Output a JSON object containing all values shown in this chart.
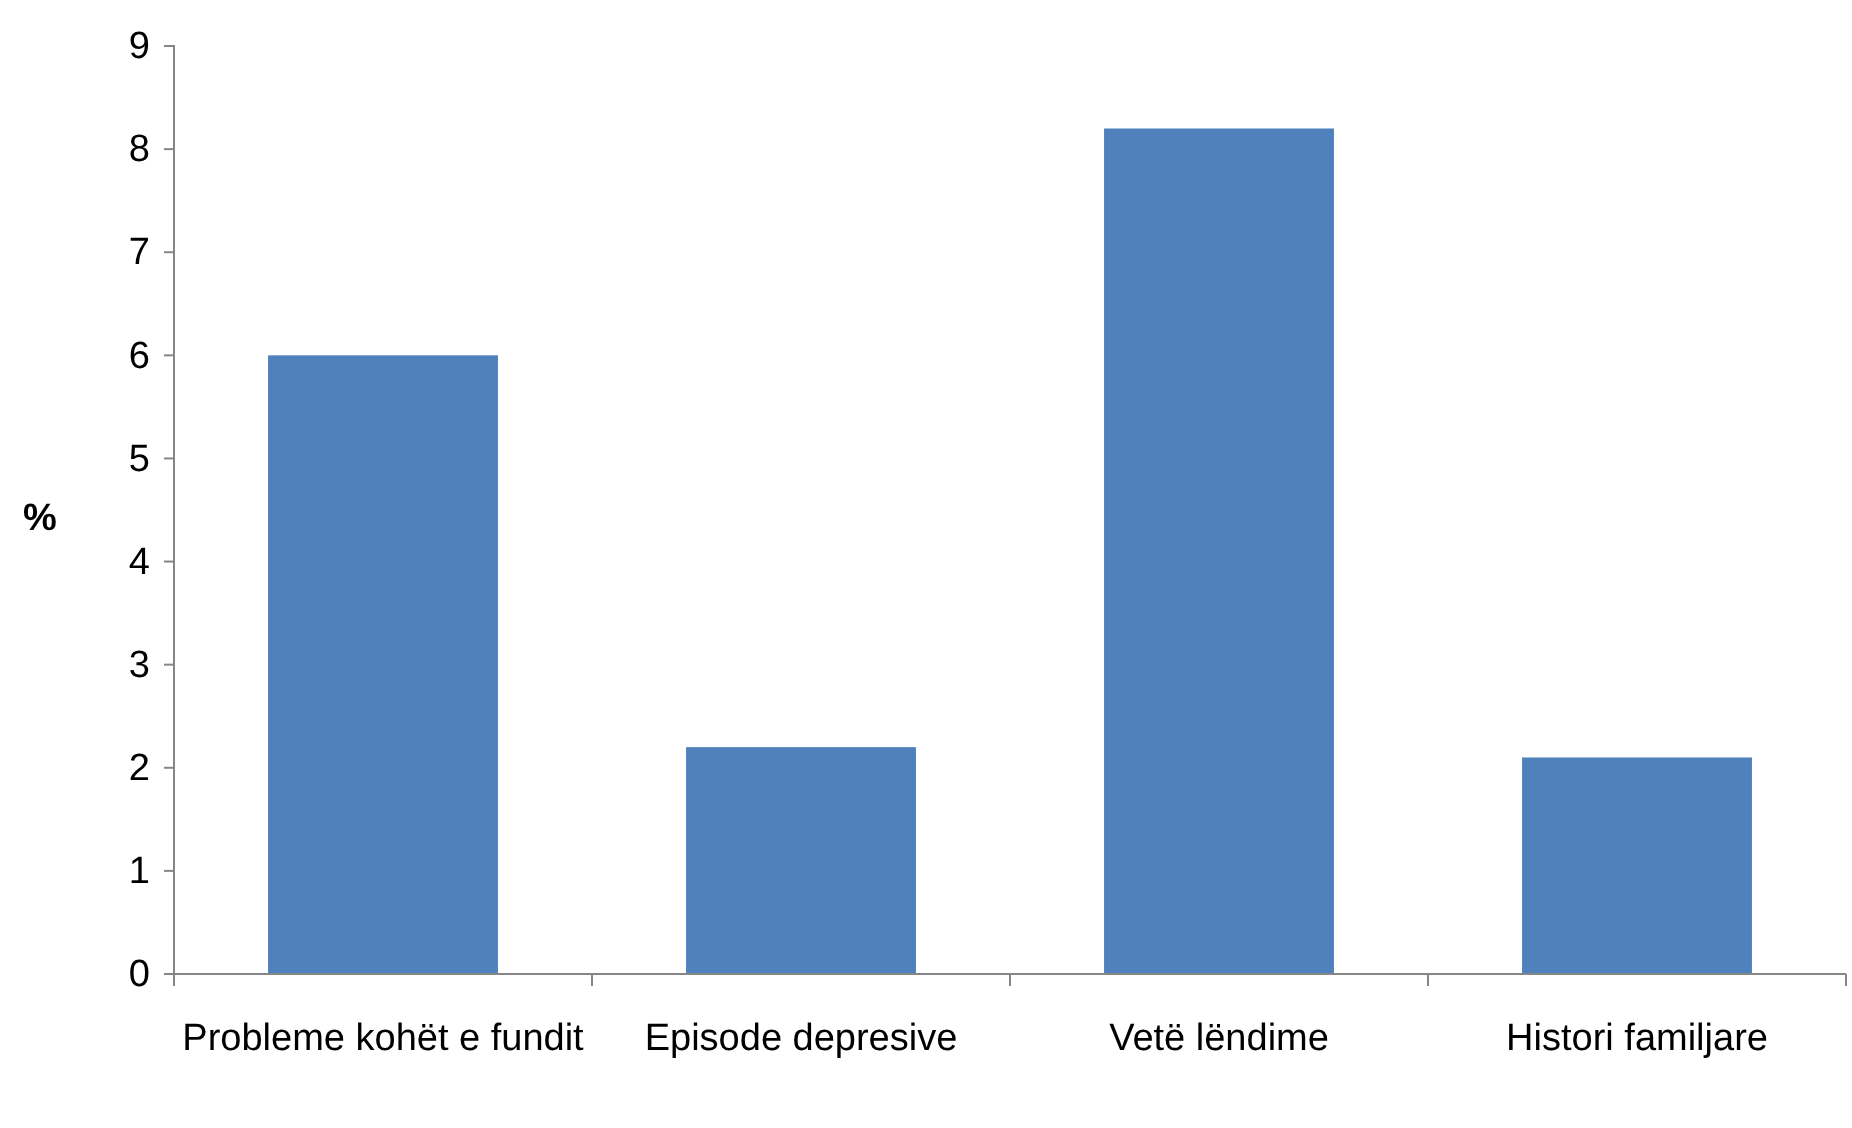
{
  "chart_data": {
    "type": "bar",
    "ylabel": "%",
    "categories": [
      "Probleme kohët e fundit",
      "Episode depresive",
      "Vetë lëndime",
      "Histori familjare"
    ],
    "values": [
      6,
      2.2,
      8.2,
      2.1
    ],
    "color": "#4f81bd",
    "ylim": [
      0,
      9
    ],
    "yticks": [
      0,
      1,
      2,
      3,
      4,
      5,
      6,
      7,
      8,
      9
    ],
    "grid": false
  }
}
